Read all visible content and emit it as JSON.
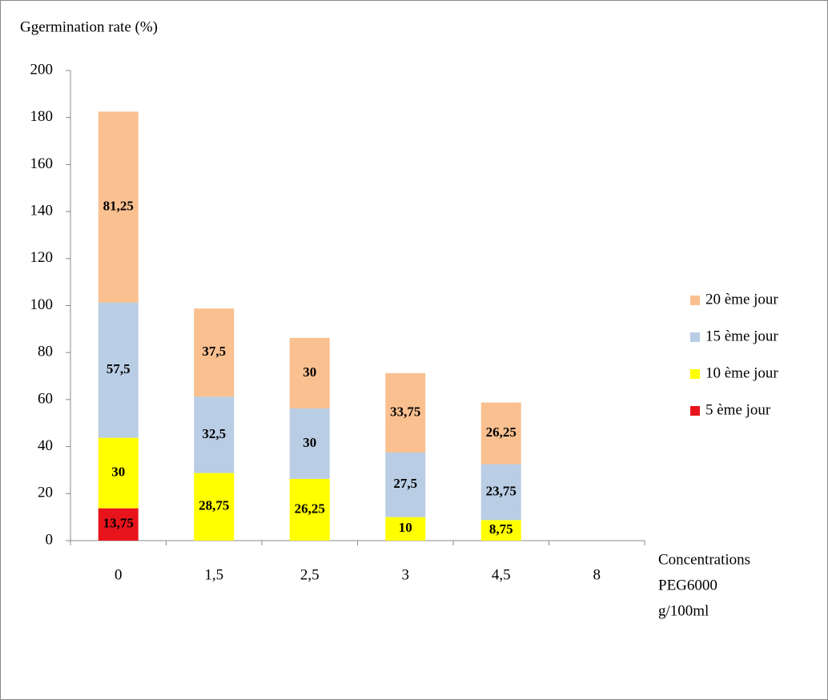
{
  "chart_data": {
    "type": "stacked_bar",
    "ylabel": "Ggermination rate (%)",
    "xlabel": [
      "Concentrations",
      "PEG6000",
      "g/100ml"
    ],
    "categories": [
      "0",
      "1,5",
      "2,5",
      "3",
      "4,5",
      "8"
    ],
    "series": [
      {
        "name": "5 ème jour",
        "color": "#e8141c",
        "values": [
          13.75,
          0,
          0,
          0,
          0,
          0
        ],
        "value_labels": [
          "13,75",
          null,
          null,
          null,
          null,
          null
        ]
      },
      {
        "name": "10 ème jour",
        "color": "#ffff00",
        "values": [
          30,
          28.75,
          26.25,
          10,
          8.75,
          0
        ],
        "value_labels": [
          "30",
          "28,75",
          "26,25",
          "10",
          "8,75",
          null
        ]
      },
      {
        "name": "15 ème jour",
        "color": "#b9cde5",
        "values": [
          57.5,
          32.5,
          30,
          27.5,
          23.75,
          0
        ],
        "value_labels": [
          "57,5",
          "32,5",
          "30",
          "27,5",
          "23,75",
          null
        ]
      },
      {
        "name": "20 ème jour",
        "color": "#fac090",
        "values": [
          81.25,
          37.5,
          30,
          33.75,
          26.25,
          0
        ],
        "value_labels": [
          "81,25",
          "37,5",
          "30",
          "33,75",
          "26,25",
          null
        ]
      }
    ],
    "ylim": [
      0,
      200
    ],
    "yticks": [
      0,
      20,
      40,
      60,
      80,
      100,
      120,
      140,
      160,
      180,
      200
    ],
    "legend": "right"
  }
}
